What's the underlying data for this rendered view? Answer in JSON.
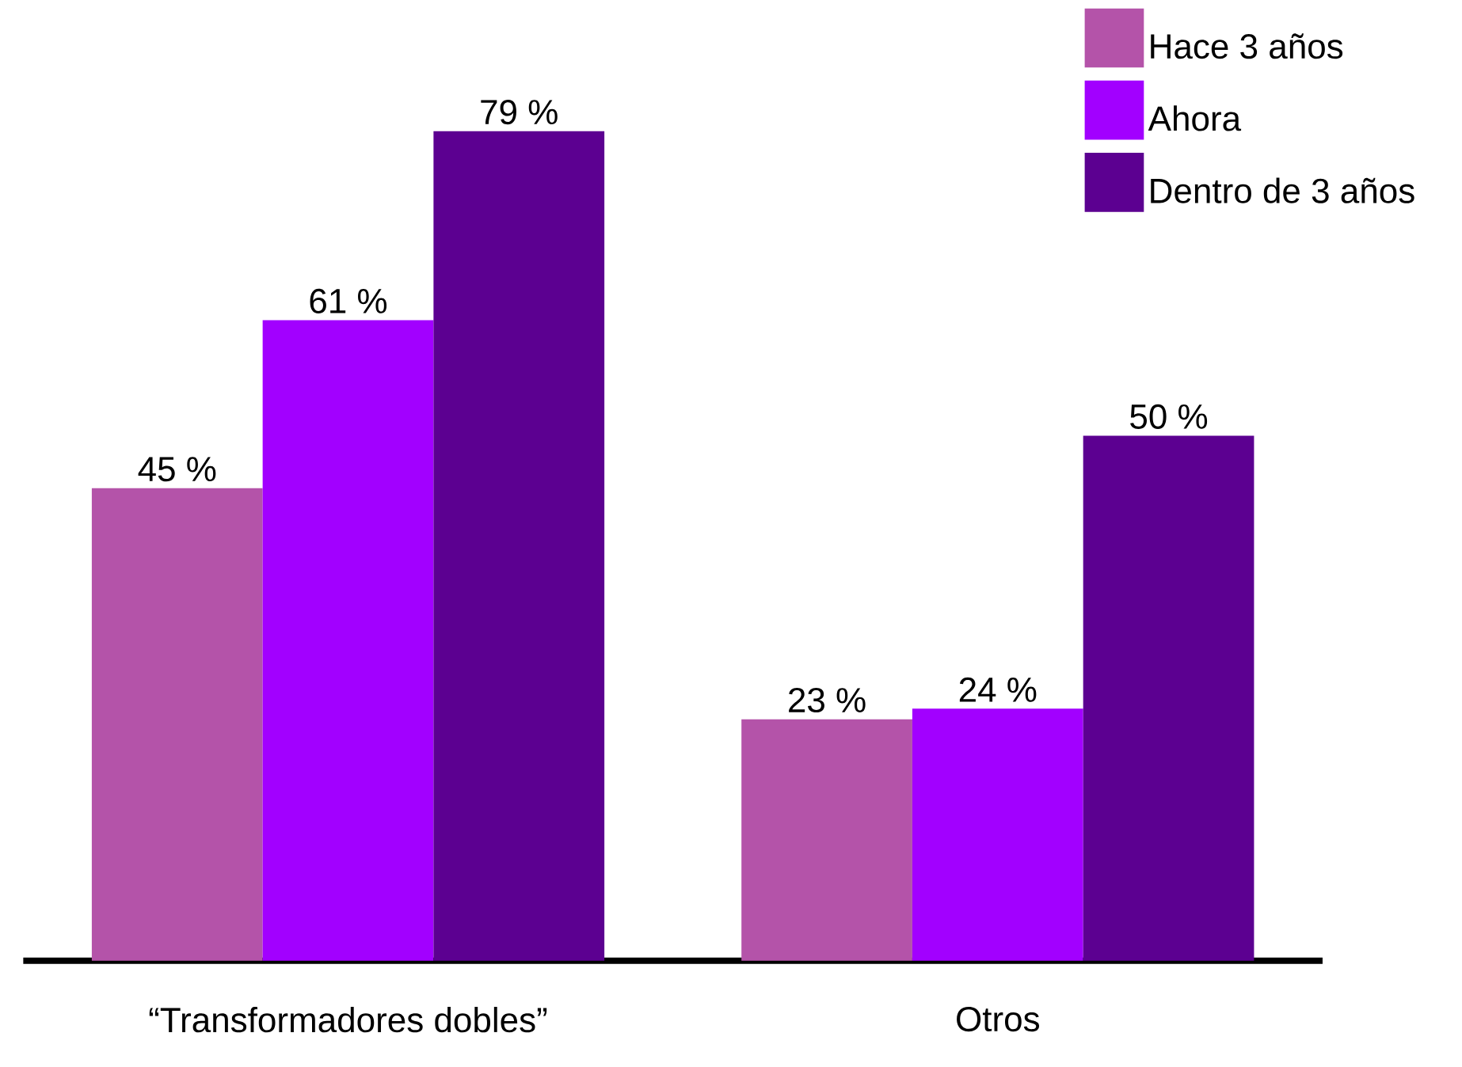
{
  "chart_data": {
    "type": "bar",
    "categories": [
      "“Transformadores dobles”",
      "Otros"
    ],
    "series": [
      {
        "name": "Hace 3 años",
        "color": "#b453a9",
        "values": [
          45,
          23
        ],
        "value_labels": [
          "45 %",
          "23 %"
        ]
      },
      {
        "name": "Ahora",
        "color": "#a200ff",
        "values": [
          61,
          24
        ],
        "value_labels": [
          "61 %",
          "24 %"
        ]
      },
      {
        "name": "Dentro de 3 años",
        "color": "#5c0091",
        "values": [
          79,
          50
        ],
        "value_labels": [
          "79 %",
          "50 %"
        ]
      }
    ],
    "legend": "top right"
  }
}
